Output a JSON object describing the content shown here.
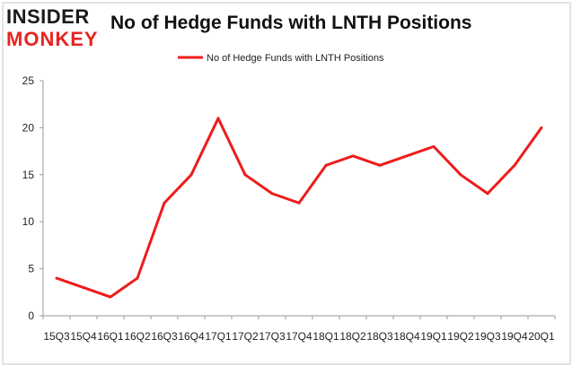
{
  "page": {
    "title": "No of Hedge Funds with LNTH Positions",
    "logo_line1": "INSIDER",
    "logo_line2": "MONKEY"
  },
  "colors": {
    "series": "#ee1c1c",
    "logo_dark": "#1a1a1a",
    "logo_red": "#e8231f",
    "frame_shadow": "#dcdcdc"
  },
  "chart_data": {
    "type": "line",
    "title": "No of Hedge Funds with LNTH Positions",
    "xlabel": "",
    "ylabel": "",
    "ylim": [
      0,
      25
    ],
    "yticks": [
      0,
      5,
      10,
      15,
      20,
      25
    ],
    "grid": false,
    "legend_position": "top-center",
    "categories": [
      "15Q3",
      "15Q4",
      "16Q1",
      "16Q2",
      "16Q3",
      "16Q4",
      "17Q1",
      "17Q2",
      "17Q3",
      "17Q4",
      "18Q1",
      "18Q2",
      "18Q3",
      "18Q4",
      "19Q1",
      "19Q2",
      "19Q3",
      "19Q4",
      "20Q1"
    ],
    "series": [
      {
        "name": "No of Hedge Funds with LNTH Positions",
        "values": [
          4,
          3,
          2,
          4,
          12,
          15,
          21,
          15,
          13,
          12,
          16,
          17,
          16,
          17,
          18,
          15,
          13,
          16,
          20
        ]
      }
    ]
  }
}
